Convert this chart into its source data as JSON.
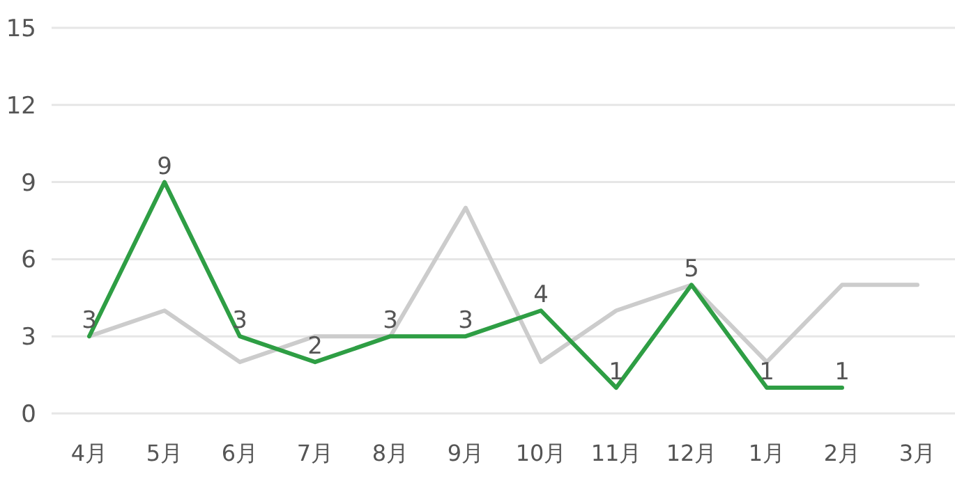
{
  "chart_data": {
    "type": "line",
    "categories": [
      "4月",
      "5月",
      "6月",
      "7月",
      "8月",
      "9月",
      "10月",
      "11月",
      "12月",
      "1月",
      "2月",
      "3月"
    ],
    "series": [
      {
        "color": "#cccccc",
        "values": [
          3,
          4,
          2,
          3,
          3,
          8,
          2,
          4,
          5,
          2,
          5,
          5
        ]
      },
      {
        "color": "#2e9e44",
        "values": [
          3,
          9,
          3,
          2,
          3,
          3,
          4,
          1,
          5,
          1,
          1,
          null
        ],
        "value_labels": [
          "3",
          "9",
          "3",
          "2",
          "3",
          "3",
          "4",
          "1",
          "5",
          "1",
          "1",
          null
        ]
      }
    ],
    "ylim": [
      0,
      15
    ],
    "yticks": [
      0,
      3,
      6,
      9,
      12,
      15
    ],
    "grid": "y"
  }
}
